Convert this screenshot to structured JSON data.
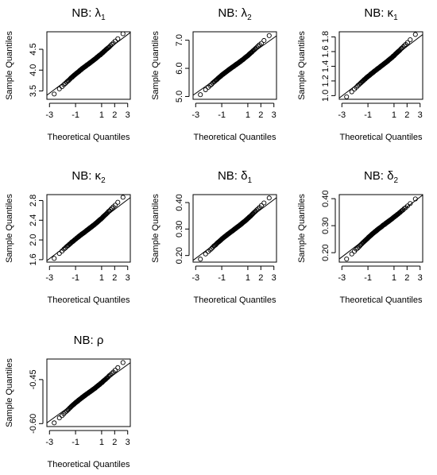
{
  "figure": {
    "panels": [
      {
        "title": "NB: λ",
        "sub": "1"
      },
      {
        "title": "NB: λ",
        "sub": "2"
      },
      {
        "title": "NB: κ",
        "sub": "1"
      },
      {
        "title": "NB: κ",
        "sub": "2"
      },
      {
        "title": "NB: δ",
        "sub": "1"
      },
      {
        "title": "NB: δ",
        "sub": "2"
      },
      {
        "title": "NB: ρ",
        "sub": ""
      }
    ]
  },
  "chart_data": [
    {
      "type": "scatter",
      "title": "NB: λ1",
      "xlabel": "Theoretical Quantiles",
      "ylabel": "Sample Quantiles",
      "xlim": [
        -3.2,
        3.2
      ],
      "ylim": [
        3.3,
        4.92
      ],
      "xticks": [
        -3,
        -1,
        1,
        2,
        3
      ],
      "xtick_labels": [
        "-3",
        "-1",
        "1",
        "2",
        "3"
      ],
      "yticks": [
        3.5,
        4.0,
        4.5
      ],
      "ytick_labels": [
        "3.5",
        "4.0",
        "4.5"
      ],
      "qq": {
        "y_min": 3.42,
        "y_max": 4.88,
        "mean": 4.15,
        "sd": 0.235,
        "ref_intercept": 4.15,
        "ref_slope": 0.235
      },
      "grid": false,
      "legend": "none"
    },
    {
      "type": "scatter",
      "title": "NB: λ2",
      "xlabel": "Theoretical Quantiles",
      "ylabel": "Sample Quantiles",
      "xlim": [
        -3.2,
        3.2
      ],
      "ylim": [
        4.9,
        7.3
      ],
      "xticks": [
        -3,
        -1,
        1,
        2,
        3
      ],
      "xtick_labels": [
        "-3",
        "-1",
        "1",
        "2",
        "3"
      ],
      "yticks": [
        5.0,
        6.0,
        7.0
      ],
      "ytick_labels": [
        "5.0",
        "6.0",
        "7.0"
      ],
      "qq": {
        "y_min": 5.05,
        "y_max": 7.18,
        "mean": 6.1,
        "sd": 0.33,
        "ref_intercept": 6.1,
        "ref_slope": 0.33
      },
      "grid": false,
      "legend": "none"
    },
    {
      "type": "scatter",
      "title": "NB: κ1",
      "xlabel": "Theoretical Quantiles",
      "ylabel": "Sample Quantiles",
      "xlim": [
        -3.2,
        3.2
      ],
      "ylim": [
        0.95,
        1.87
      ],
      "xticks": [
        -3,
        -1,
        1,
        2,
        3
      ],
      "xtick_labels": [
        "-3",
        "-1",
        "1",
        "2",
        "3"
      ],
      "yticks": [
        1.0,
        1.2,
        1.4,
        1.6,
        1.8
      ],
      "ytick_labels": [
        "1.0",
        "1.2",
        "1.4",
        "1.6",
        "1.8"
      ],
      "qq": {
        "y_min": 0.98,
        "y_max": 1.84,
        "mean": 1.4,
        "sd": 0.135,
        "ref_intercept": 1.4,
        "ref_slope": 0.135
      },
      "grid": false,
      "legend": "none"
    },
    {
      "type": "scatter",
      "title": "NB: κ2",
      "xlabel": "Theoretical Quantiles",
      "ylabel": "Sample Quantiles",
      "xlim": [
        -3.2,
        3.2
      ],
      "ylim": [
        1.55,
        2.92
      ],
      "xticks": [
        -3,
        -1,
        1,
        2,
        3
      ],
      "xtick_labels": [
        "-3",
        "-1",
        "1",
        "2",
        "3"
      ],
      "yticks": [
        1.6,
        2.0,
        2.4,
        2.8
      ],
      "ytick_labels": [
        "1.6",
        "2.0",
        "2.4",
        "2.8"
      ],
      "qq": {
        "y_min": 1.62,
        "y_max": 2.88,
        "mean": 2.22,
        "sd": 0.2,
        "ref_intercept": 2.22,
        "ref_slope": 0.2
      },
      "grid": false,
      "legend": "none"
    },
    {
      "type": "scatter",
      "title": "NB: δ1",
      "xlabel": "Theoretical Quantiles",
      "ylabel": "Sample Quantiles",
      "xlim": [
        -3.2,
        3.2
      ],
      "ylim": [
        0.175,
        0.43
      ],
      "xticks": [
        -3,
        -1,
        1,
        2,
        3
      ],
      "xtick_labels": [
        "-3",
        "-1",
        "1",
        "2",
        "3"
      ],
      "yticks": [
        0.2,
        0.3,
        0.4
      ],
      "ytick_labels": [
        "0.20",
        "0.30",
        "0.40"
      ],
      "qq": {
        "y_min": 0.185,
        "y_max": 0.42,
        "mean": 0.3,
        "sd": 0.037,
        "ref_intercept": 0.3,
        "ref_slope": 0.037
      },
      "grid": false,
      "legend": "none"
    },
    {
      "type": "scatter",
      "title": "NB: δ2",
      "xlabel": "Theoretical Quantiles",
      "ylabel": "Sample Quantiles",
      "xlim": [
        -3.2,
        3.2
      ],
      "ylim": [
        0.165,
        0.415
      ],
      "xticks": [
        -3,
        -1,
        1,
        2,
        3
      ],
      "xtick_labels": [
        "-3",
        "-1",
        "1",
        "2",
        "3"
      ],
      "yticks": [
        0.2,
        0.3,
        0.4
      ],
      "ytick_labels": [
        "0.20",
        "0.30",
        "0.40"
      ],
      "qq": {
        "y_min": 0.175,
        "y_max": 0.4,
        "mean": 0.295,
        "sd": 0.037,
        "ref_intercept": 0.295,
        "ref_slope": 0.037
      },
      "grid": false,
      "legend": "none"
    },
    {
      "type": "scatter",
      "title": "NB: ρ",
      "xlabel": "Theoretical Quantiles",
      "ylabel": "Sample Quantiles",
      "xlim": [
        -3.2,
        3.2
      ],
      "ylim": [
        -0.61,
        -0.38
      ],
      "xticks": [
        -3,
        -1,
        1,
        2,
        3
      ],
      "xtick_labels": [
        "-3",
        "-1",
        "1",
        "2",
        "3"
      ],
      "yticks": [
        -0.6,
        -0.45
      ],
      "ytick_labels": [
        "-0.60",
        "-0.45"
      ],
      "qq": {
        "y_min": -0.6,
        "y_max": -0.39,
        "mean": -0.495,
        "sd": 0.032,
        "ref_intercept": -0.495,
        "ref_slope": 0.032
      },
      "grid": false,
      "legend": "none"
    }
  ]
}
